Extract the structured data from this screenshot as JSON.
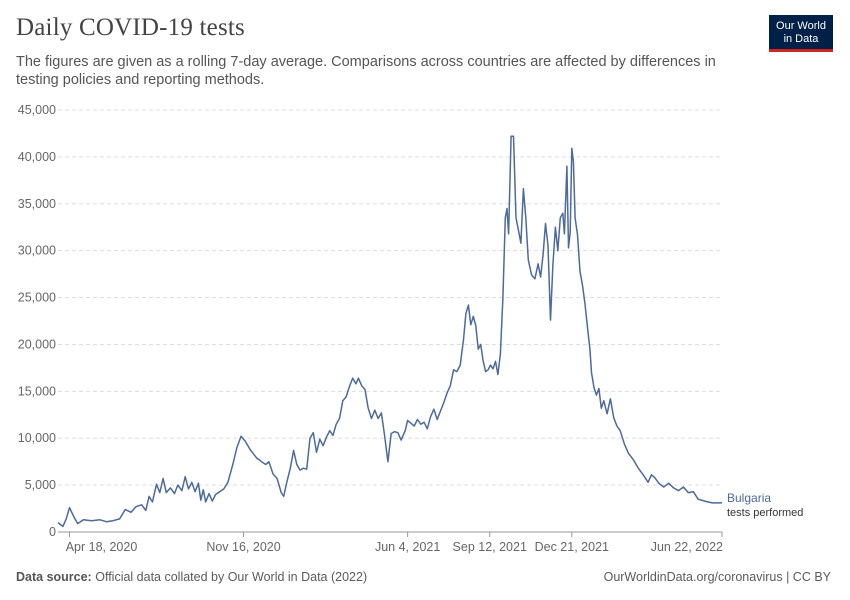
{
  "header": {
    "title": "Daily COVID-19 tests",
    "subtitle": "The figures are given as a rolling 7-day average. Comparisons across countries are affected by differences in testing policies and reporting methods."
  },
  "logo": {
    "line1": "Our World",
    "line2": "in Data",
    "bg_color": "#002147",
    "accent_color": "#ce261e"
  },
  "footer": {
    "source_label": "Data source:",
    "source_text": "Official data collated by Our World in Data (2022)",
    "attribution": "OurWorldinData.org/coronavirus | CC BY"
  },
  "chart_data": {
    "type": "line",
    "title": "Daily COVID-19 tests",
    "ylim": [
      0,
      45000
    ],
    "yticks": [
      0,
      5000,
      10000,
      15000,
      20000,
      25000,
      30000,
      35000,
      40000,
      45000
    ],
    "ytick_labels": [
      "0",
      "5,000",
      "10,000",
      "15,000",
      "20,000",
      "25,000",
      "30,000",
      "35,000",
      "40,000",
      "45,000"
    ],
    "xlim": [
      "2020-04-04",
      "2022-06-22"
    ],
    "xticks": [
      "2020-04-18",
      "2020-11-16",
      "2021-06-04",
      "2021-09-12",
      "2021-12-21",
      "2022-06-22"
    ],
    "xtick_labels": [
      "Apr 18, 2020",
      "Nov 16, 2020",
      "Jun 4, 2021",
      "Sep 12, 2021",
      "Dec 21, 2021",
      "Jun 22, 2022"
    ],
    "grid": "horizontal dashed",
    "line_color": "#4c6a9c",
    "series": [
      {
        "name": "Bulgaria",
        "label_sub": "tests performed",
        "points": [
          [
            "2020-04-04",
            1000
          ],
          [
            "2020-04-10",
            600
          ],
          [
            "2020-04-14",
            1400
          ],
          [
            "2020-04-18",
            2600
          ],
          [
            "2020-04-24",
            1500
          ],
          [
            "2020-04-28",
            900
          ],
          [
            "2020-05-05",
            1300
          ],
          [
            "2020-05-15",
            1200
          ],
          [
            "2020-05-25",
            1300
          ],
          [
            "2020-06-02",
            1100
          ],
          [
            "2020-06-10",
            1200
          ],
          [
            "2020-06-18",
            1400
          ],
          [
            "2020-06-25",
            2400
          ],
          [
            "2020-07-02",
            2100
          ],
          [
            "2020-07-08",
            2700
          ],
          [
            "2020-07-15",
            2900
          ],
          [
            "2020-07-20",
            2300
          ],
          [
            "2020-07-24",
            3800
          ],
          [
            "2020-07-28",
            3200
          ],
          [
            "2020-08-02",
            5100
          ],
          [
            "2020-08-06",
            4200
          ],
          [
            "2020-08-10",
            5700
          ],
          [
            "2020-08-14",
            4200
          ],
          [
            "2020-08-19",
            4700
          ],
          [
            "2020-08-24",
            4100
          ],
          [
            "2020-08-28",
            5000
          ],
          [
            "2020-09-02",
            4400
          ],
          [
            "2020-09-06",
            5900
          ],
          [
            "2020-09-10",
            4600
          ],
          [
            "2020-09-14",
            5300
          ],
          [
            "2020-09-18",
            4300
          ],
          [
            "2020-09-22",
            5200
          ],
          [
            "2020-09-25",
            3400
          ],
          [
            "2020-09-28",
            4500
          ],
          [
            "2020-10-01",
            3200
          ],
          [
            "2020-10-05",
            4100
          ],
          [
            "2020-10-09",
            3300
          ],
          [
            "2020-10-13",
            4000
          ],
          [
            "2020-10-18",
            4300
          ],
          [
            "2020-10-23",
            4600
          ],
          [
            "2020-10-28",
            5300
          ],
          [
            "2020-11-03",
            7200
          ],
          [
            "2020-11-08",
            9000
          ],
          [
            "2020-11-13",
            10200
          ],
          [
            "2020-11-18",
            9700
          ],
          [
            "2020-11-24",
            8800
          ],
          [
            "2020-12-02",
            7900
          ],
          [
            "2020-12-08",
            7500
          ],
          [
            "2020-12-13",
            7200
          ],
          [
            "2020-12-17",
            7500
          ],
          [
            "2020-12-22",
            6200
          ],
          [
            "2020-12-27",
            5700
          ],
          [
            "2021-01-01",
            4200
          ],
          [
            "2021-01-04",
            3800
          ],
          [
            "2021-01-08",
            5400
          ],
          [
            "2021-01-12",
            6800
          ],
          [
            "2021-01-16",
            8700
          ],
          [
            "2021-01-20",
            7200
          ],
          [
            "2021-01-24",
            6600
          ],
          [
            "2021-01-28",
            6800
          ],
          [
            "2021-02-01",
            6700
          ],
          [
            "2021-02-05",
            10000
          ],
          [
            "2021-02-09",
            10600
          ],
          [
            "2021-02-13",
            8500
          ],
          [
            "2021-02-17",
            9900
          ],
          [
            "2021-02-21",
            9200
          ],
          [
            "2021-02-25",
            10100
          ],
          [
            "2021-03-01",
            10800
          ],
          [
            "2021-03-05",
            10300
          ],
          [
            "2021-03-09",
            11500
          ],
          [
            "2021-03-13",
            12100
          ],
          [
            "2021-03-17",
            14000
          ],
          [
            "2021-03-21",
            14400
          ],
          [
            "2021-03-25",
            15500
          ],
          [
            "2021-03-29",
            16400
          ],
          [
            "2021-04-02",
            15800
          ],
          [
            "2021-04-05",
            16400
          ],
          [
            "2021-04-09",
            15600
          ],
          [
            "2021-04-13",
            15200
          ],
          [
            "2021-04-17",
            13200
          ],
          [
            "2021-04-21",
            12100
          ],
          [
            "2021-04-25",
            13000
          ],
          [
            "2021-04-29",
            12100
          ],
          [
            "2021-05-03",
            12700
          ],
          [
            "2021-05-07",
            10200
          ],
          [
            "2021-05-11",
            7500
          ],
          [
            "2021-05-15",
            10500
          ],
          [
            "2021-05-19",
            10700
          ],
          [
            "2021-05-23",
            10600
          ],
          [
            "2021-05-27",
            9800
          ],
          [
            "2021-06-01",
            10800
          ],
          [
            "2021-06-04",
            11900
          ],
          [
            "2021-06-08",
            11600
          ],
          [
            "2021-06-12",
            11300
          ],
          [
            "2021-06-16",
            12000
          ],
          [
            "2021-06-20",
            11500
          ],
          [
            "2021-06-24",
            11700
          ],
          [
            "2021-06-28",
            11000
          ],
          [
            "2021-07-02",
            12300
          ],
          [
            "2021-07-06",
            13100
          ],
          [
            "2021-07-10",
            12000
          ],
          [
            "2021-07-14",
            12900
          ],
          [
            "2021-07-18",
            13800
          ],
          [
            "2021-07-22",
            14800
          ],
          [
            "2021-07-26",
            15600
          ],
          [
            "2021-07-30",
            17300
          ],
          [
            "2021-08-03",
            17100
          ],
          [
            "2021-08-07",
            17800
          ],
          [
            "2021-08-11",
            20500
          ],
          [
            "2021-08-14",
            23300
          ],
          [
            "2021-08-17",
            24200
          ],
          [
            "2021-08-20",
            22100
          ],
          [
            "2021-08-23",
            23000
          ],
          [
            "2021-08-26",
            22000
          ],
          [
            "2021-08-29",
            19500
          ],
          [
            "2021-09-01",
            20000
          ],
          [
            "2021-09-04",
            18200
          ],
          [
            "2021-09-07",
            17100
          ],
          [
            "2021-09-10",
            17300
          ],
          [
            "2021-09-13",
            17800
          ],
          [
            "2021-09-16",
            17400
          ],
          [
            "2021-09-19",
            18200
          ],
          [
            "2021-09-22",
            16800
          ],
          [
            "2021-09-25",
            19000
          ],
          [
            "2021-09-28",
            25000
          ],
          [
            "2021-10-01",
            33500
          ],
          [
            "2021-10-03",
            34500
          ],
          [
            "2021-10-05",
            31800
          ],
          [
            "2021-10-08",
            42200
          ],
          [
            "2021-10-11",
            42200
          ],
          [
            "2021-10-14",
            33500
          ],
          [
            "2021-10-17",
            32200
          ],
          [
            "2021-10-20",
            30800
          ],
          [
            "2021-10-23",
            36600
          ],
          [
            "2021-10-26",
            33500
          ],
          [
            "2021-10-29",
            29000
          ],
          [
            "2021-11-02",
            27400
          ],
          [
            "2021-11-06",
            27000
          ],
          [
            "2021-11-10",
            28600
          ],
          [
            "2021-11-13",
            27200
          ],
          [
            "2021-11-16",
            29600
          ],
          [
            "2021-11-19",
            32900
          ],
          [
            "2021-11-22",
            30500
          ],
          [
            "2021-11-25",
            22600
          ],
          [
            "2021-11-28",
            28500
          ],
          [
            "2021-12-01",
            32500
          ],
          [
            "2021-12-04",
            30000
          ],
          [
            "2021-12-07",
            33500
          ],
          [
            "2021-12-10",
            34000
          ],
          [
            "2021-12-12",
            31800
          ],
          [
            "2021-12-15",
            39000
          ],
          [
            "2021-12-17",
            30300
          ],
          [
            "2021-12-19",
            32000
          ],
          [
            "2021-12-21",
            40900
          ],
          [
            "2021-12-23",
            39500
          ],
          [
            "2021-12-25",
            33500
          ],
          [
            "2021-12-28",
            31700
          ],
          [
            "2021-12-31",
            27800
          ],
          [
            "2022-01-03",
            26300
          ],
          [
            "2022-01-06",
            24400
          ],
          [
            "2022-01-09",
            21900
          ],
          [
            "2022-01-12",
            19500
          ],
          [
            "2022-01-14",
            17000
          ],
          [
            "2022-01-17",
            15400
          ],
          [
            "2022-01-20",
            14600
          ],
          [
            "2022-01-23",
            15300
          ],
          [
            "2022-01-26",
            13200
          ],
          [
            "2022-01-29",
            14000
          ],
          [
            "2022-02-02",
            12600
          ],
          [
            "2022-02-06",
            14200
          ],
          [
            "2022-02-10",
            12200
          ],
          [
            "2022-02-14",
            11300
          ],
          [
            "2022-02-18",
            10800
          ],
          [
            "2022-02-23",
            9400
          ],
          [
            "2022-02-28",
            8400
          ],
          [
            "2022-03-06",
            7700
          ],
          [
            "2022-03-12",
            6800
          ],
          [
            "2022-03-18",
            6100
          ],
          [
            "2022-03-24",
            5300
          ],
          [
            "2022-03-28",
            6100
          ],
          [
            "2022-04-01",
            5800
          ],
          [
            "2022-04-06",
            5200
          ],
          [
            "2022-04-12",
            4800
          ],
          [
            "2022-04-18",
            5200
          ],
          [
            "2022-04-24",
            4700
          ],
          [
            "2022-04-30",
            4400
          ],
          [
            "2022-05-06",
            4800
          ],
          [
            "2022-05-12",
            4200
          ],
          [
            "2022-05-18",
            4300
          ],
          [
            "2022-05-24",
            3500
          ],
          [
            "2022-06-01",
            3300
          ],
          [
            "2022-06-10",
            3100
          ],
          [
            "2022-06-22",
            3100
          ]
        ]
      }
    ]
  }
}
